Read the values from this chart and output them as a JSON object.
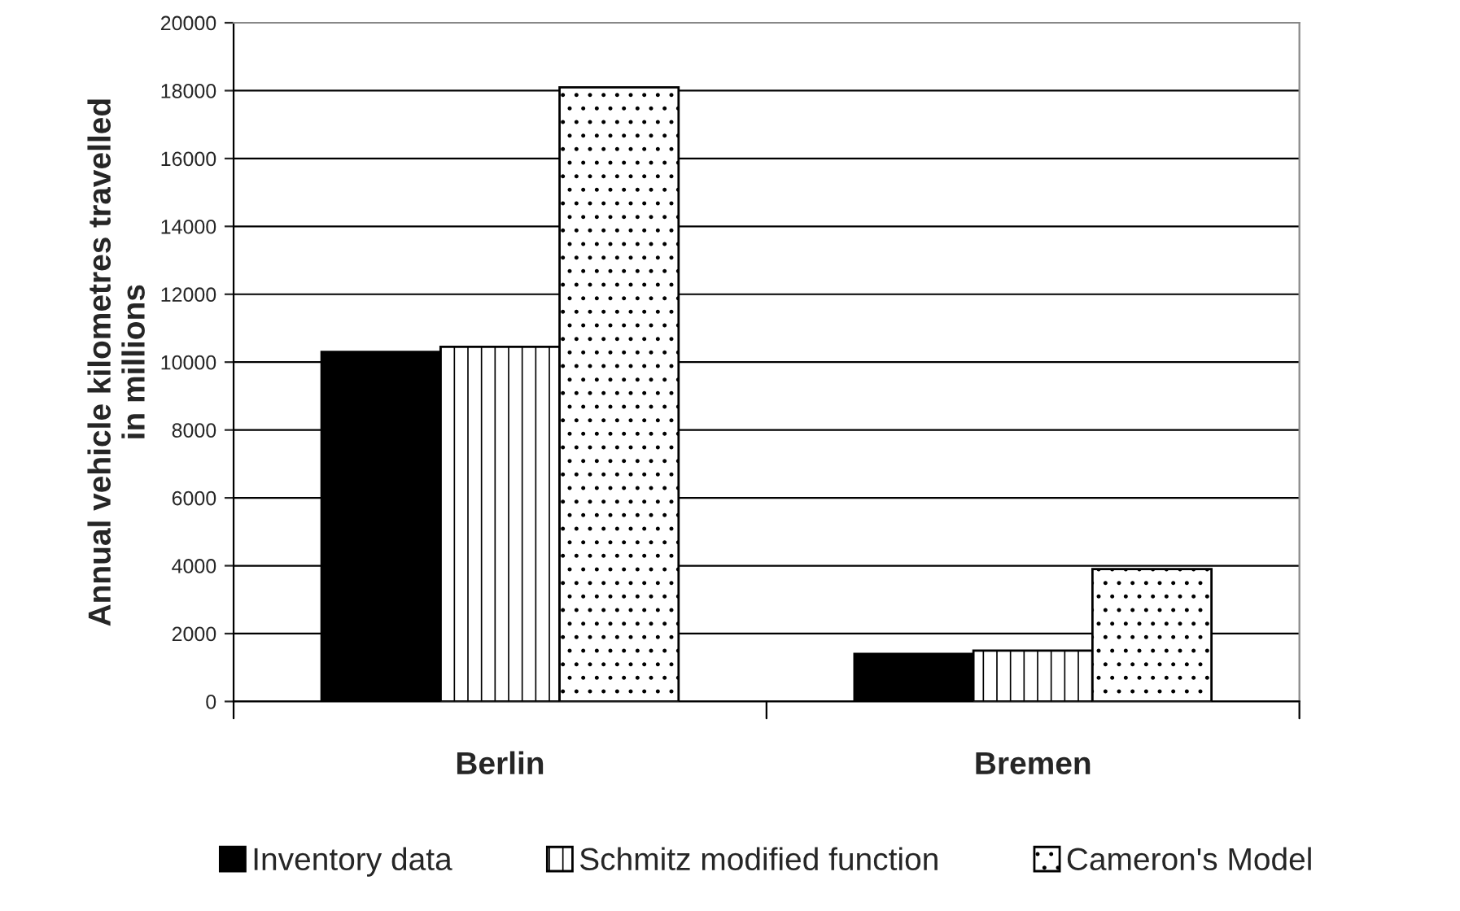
{
  "chart_data": {
    "type": "bar",
    "ylabel": "Annual vehicle kilometres travelled\nin millions",
    "categories": [
      "Berlin",
      "Bremen"
    ],
    "series": [
      {
        "name": "Inventory data",
        "color": "#000000",
        "values": [
          10300,
          1400
        ]
      },
      {
        "name": "Schmitz modified function",
        "color": "#ffffff",
        "values": [
          10450,
          1500
        ]
      },
      {
        "name": "Cameron's Model",
        "color": "#ffffff",
        "values": [
          18100,
          3900
        ]
      }
    ],
    "ylim": [
      0,
      20000
    ],
    "yticks": [
      0,
      2000,
      4000,
      6000,
      8000,
      10000,
      12000,
      14000,
      16000,
      18000,
      20000
    ],
    "grid": "y",
    "legend": "bottom"
  }
}
